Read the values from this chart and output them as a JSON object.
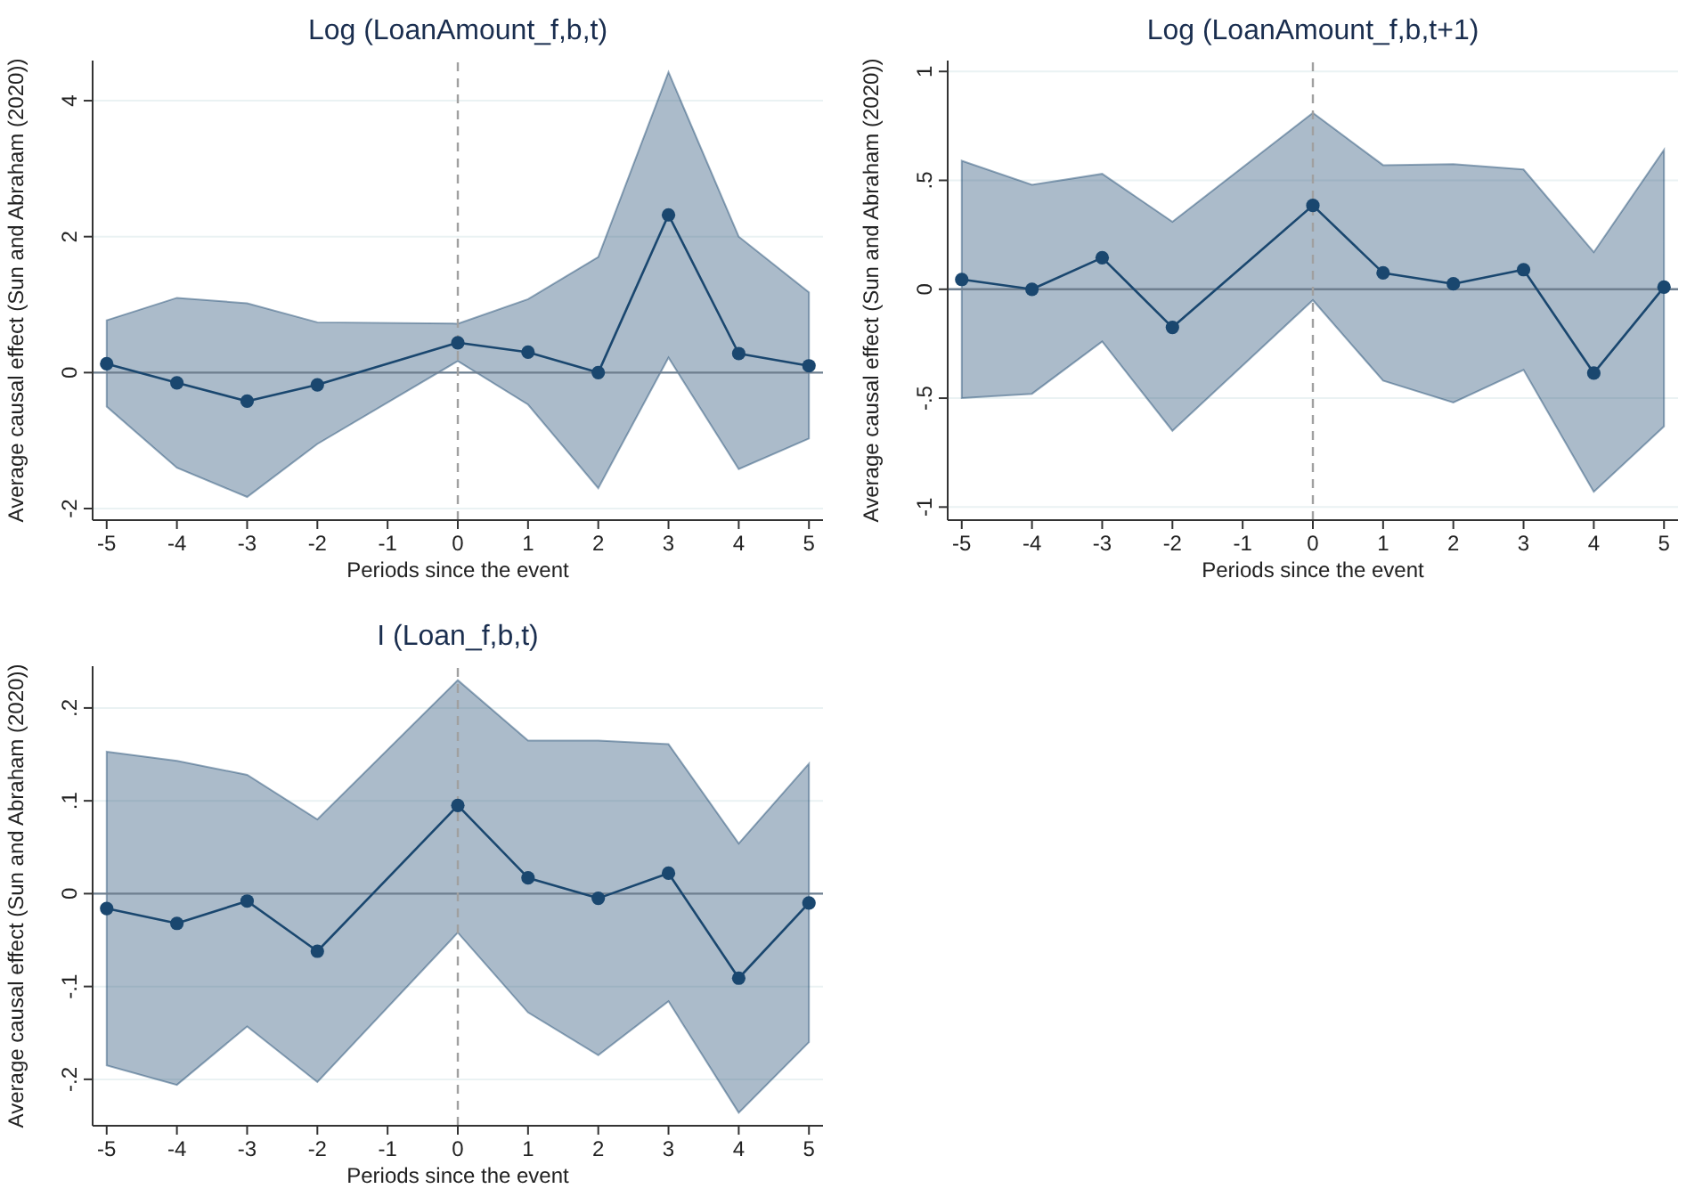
{
  "chart_data": [
    {
      "type": "line",
      "title": "Log (LoanAmount_f,b,t)",
      "xlabel": "Periods since the event",
      "ylabel": "Average causal effect (Sun and Abraham (2020))",
      "x": [
        -5,
        -4,
        -3,
        -2,
        0,
        1,
        2,
        3,
        4,
        5
      ],
      "series": [
        {
          "color": "#1a476f",
          "values": [
            0.13,
            -0.15,
            -0.42,
            -0.18,
            0.44,
            0.3,
            0.0,
            2.32,
            0.28,
            0.1
          ],
          "lower": [
            -0.5,
            -1.4,
            -1.83,
            -1.05,
            0.17,
            -0.47,
            -1.7,
            0.22,
            -1.42,
            -0.97
          ],
          "upper": [
            0.77,
            1.1,
            1.02,
            0.74,
            0.72,
            1.08,
            1.7,
            4.42,
            2.0,
            1.18
          ]
        }
      ],
      "xlim": [
        -5.2,
        5.2
      ],
      "xticks": [
        -5,
        -4,
        -3,
        -2,
        -1,
        0,
        1,
        2,
        3,
        4,
        5
      ],
      "ylim": [
        -2.17,
        4.59
      ],
      "yticks": [
        -2,
        0,
        2,
        4
      ],
      "grid": "y",
      "marker": "circle",
      "ref_lines": [
        {
          "axis": "y",
          "value": 0,
          "color": "#6f7f8f",
          "line_style": "solid"
        },
        {
          "axis": "x",
          "value": 0,
          "color": "#a0a0a0",
          "line_style": "dashed"
        }
      ]
    },
    {
      "type": "line",
      "title": "Log (LoanAmount_f,b,t+1)",
      "xlabel": "Periods since the event",
      "ylabel": "Average causal effect (Sun and Abraham (2020))",
      "x": [
        -5,
        -4,
        -3,
        -2,
        0,
        1,
        2,
        3,
        4,
        5
      ],
      "series": [
        {
          "color": "#1a476f",
          "values": [
            0.045,
            0.0,
            0.145,
            -0.175,
            0.385,
            0.075,
            0.025,
            0.09,
            -0.385,
            0.01
          ],
          "lower": [
            -0.5,
            -0.48,
            -0.24,
            -0.65,
            -0.05,
            -0.42,
            -0.52,
            -0.37,
            -0.93,
            -0.63
          ],
          "upper": [
            0.59,
            0.48,
            0.53,
            0.31,
            0.81,
            0.57,
            0.575,
            0.55,
            0.17,
            0.64
          ]
        }
      ],
      "xlim": [
        -5.2,
        5.2
      ],
      "xticks": [
        -5,
        -4,
        -3,
        -2,
        -1,
        0,
        1,
        2,
        3,
        4,
        5
      ],
      "ylim": [
        -1.06,
        1.05
      ],
      "yticks": [
        -1,
        {
          "value": -0.5,
          "label": "-.5"
        },
        0,
        {
          "value": 0.5,
          "label": ".5"
        },
        1
      ],
      "grid": "y",
      "marker": "circle",
      "ref_lines": [
        {
          "axis": "y",
          "value": 0,
          "color": "#6f7f8f",
          "line_style": "solid"
        },
        {
          "axis": "x",
          "value": 0,
          "color": "#a0a0a0",
          "line_style": "dashed"
        }
      ]
    },
    {
      "type": "line",
      "title": "I (Loan_f,b,t)",
      "xlabel": "Periods since the event",
      "ylabel": "Average causal effect (Sun and Abraham (2020))",
      "x": [
        -5,
        -4,
        -3,
        -2,
        0,
        1,
        2,
        3,
        4,
        5
      ],
      "series": [
        {
          "color": "#1a476f",
          "values": [
            -0.016,
            -0.032,
            -0.008,
            -0.062,
            0.095,
            0.017,
            -0.005,
            0.022,
            -0.091,
            -0.01
          ],
          "lower": [
            -0.185,
            -0.206,
            -0.143,
            -0.203,
            -0.042,
            -0.128,
            -0.174,
            -0.116,
            -0.236,
            -0.16
          ],
          "upper": [
            0.153,
            0.143,
            0.128,
            0.08,
            0.23,
            0.165,
            0.165,
            0.161,
            0.054,
            0.14
          ]
        }
      ],
      "xlim": [
        -5.2,
        5.2
      ],
      "xticks": [
        -5,
        -4,
        -3,
        -2,
        -1,
        0,
        1,
        2,
        3,
        4,
        5
      ],
      "ylim": [
        -0.25,
        0.245
      ],
      "yticks": [
        {
          "value": -0.2,
          "label": "-.2"
        },
        {
          "value": -0.1,
          "label": "-.1"
        },
        0,
        {
          "value": 0.1,
          "label": ".1"
        },
        {
          "value": 0.2,
          "label": ".2"
        }
      ],
      "grid": "y",
      "marker": "circle",
      "ref_lines": [
        {
          "axis": "y",
          "value": 0,
          "color": "#6f7f8f",
          "line_style": "solid"
        },
        {
          "axis": "x",
          "value": 0,
          "color": "#a0a0a0",
          "line_style": "dashed"
        }
      ]
    }
  ]
}
